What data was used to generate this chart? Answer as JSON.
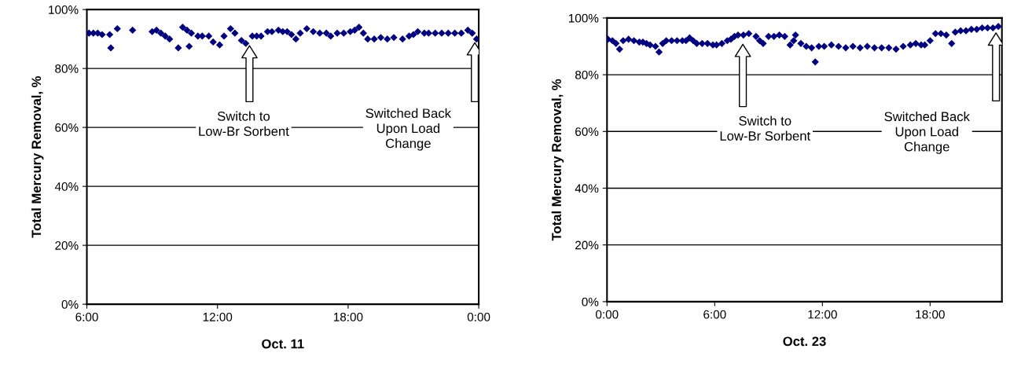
{
  "chart_data": [
    {
      "type": "scatter",
      "xlabel": "Oct. 11",
      "ylabel": "Total Mercury Removal, %",
      "marker": "diamond",
      "grid": "y",
      "xlim": [
        6,
        24
      ],
      "xticks": [
        {
          "value": 6,
          "label": "6:00"
        },
        {
          "value": 12,
          "label": "12:00"
        },
        {
          "value": 18,
          "label": "18:00"
        },
        {
          "value": 24,
          "label": "0:00"
        }
      ],
      "ylim": [
        0,
        100
      ],
      "yticks": [
        {
          "value": 0,
          "label": "0%"
        },
        {
          "value": 20,
          "label": "20%"
        },
        {
          "value": 40,
          "label": "40%"
        },
        {
          "value": 60,
          "label": "60%"
        },
        {
          "value": 80,
          "label": "80%"
        },
        {
          "value": 100,
          "label": "100%"
        }
      ],
      "series": [
        {
          "color": "#000080",
          "x": [
            6.1,
            6.3,
            6.5,
            6.7,
            7.05,
            7.1,
            7.4,
            8.1,
            9.0,
            9.2,
            9.4,
            9.6,
            9.8,
            10.2,
            10.4,
            10.6,
            10.7,
            10.8,
            11.1,
            11.3,
            11.6,
            11.8,
            12.1,
            12.3,
            12.6,
            12.8,
            13.1,
            13.3,
            13.6,
            13.8,
            14.0,
            14.3,
            14.5,
            14.8,
            15.0,
            15.2,
            15.4,
            15.6,
            15.8,
            16.1,
            16.4,
            16.7,
            17.0,
            17.2,
            17.5,
            17.8,
            18.1,
            18.3,
            18.5,
            18.7,
            18.9,
            19.2,
            19.5,
            19.8,
            20.1,
            20.5,
            20.8,
            21.0,
            21.2,
            21.5,
            21.7,
            22.0,
            22.3,
            22.6,
            22.9,
            23.2,
            23.5,
            23.7,
            23.9
          ],
          "values": [
            92,
            92,
            92,
            91.5,
            91.5,
            87,
            93.5,
            93,
            92.5,
            93,
            92,
            91,
            90,
            87,
            94,
            93,
            87.5,
            92,
            91,
            91,
            91,
            89,
            88,
            91,
            93.5,
            92,
            89.5,
            88.5,
            91,
            91,
            91,
            92.5,
            92.5,
            93,
            92.5,
            92.5,
            91.5,
            90,
            92,
            93.5,
            92.5,
            92,
            92,
            91,
            92,
            92,
            92.5,
            93,
            94,
            92,
            90,
            90,
            90.5,
            90,
            90.5,
            90,
            91,
            91.5,
            92.5,
            92,
            92,
            92,
            92,
            92,
            92,
            92,
            93,
            92,
            90
          ]
        }
      ],
      "annotations": [
        "Switch to\nLow-Br Sorbent",
        "Switched Back\nUpon Load\nChange"
      ]
    },
    {
      "type": "scatter",
      "xlabel": "Oct. 23",
      "ylabel": "Total Mercury Removal, %",
      "marker": "diamond",
      "grid": "y",
      "xlim": [
        0,
        22
      ],
      "xticks": [
        {
          "value": 0,
          "label": "0:00"
        },
        {
          "value": 6,
          "label": "6:00"
        },
        {
          "value": 12,
          "label": "12:00"
        },
        {
          "value": 18,
          "label": "18:00"
        }
      ],
      "ylim": [
        0,
        100
      ],
      "yticks": [
        {
          "value": 0,
          "label": "0%"
        },
        {
          "value": 20,
          "label": "20%"
        },
        {
          "value": 40,
          "label": "40%"
        },
        {
          "value": 60,
          "label": "60%"
        },
        {
          "value": 80,
          "label": "80%"
        },
        {
          "value": 100,
          "label": "100%"
        }
      ],
      "series": [
        {
          "color": "#000080",
          "x": [
            0.05,
            0.3,
            0.5,
            0.7,
            0.9,
            1.2,
            1.5,
            1.8,
            2.0,
            2.2,
            2.4,
            2.7,
            2.9,
            3.1,
            3.3,
            3.6,
            3.9,
            4.2,
            4.4,
            4.6,
            4.8,
            5.0,
            5.3,
            5.6,
            5.9,
            6.1,
            6.4,
            6.7,
            6.9,
            7.1,
            7.3,
            7.6,
            7.9,
            8.3,
            8.5,
            8.7,
            9.0,
            9.3,
            9.6,
            9.9,
            10.2,
            10.4,
            10.5,
            10.8,
            11.1,
            11.4,
            11.6,
            11.8,
            12.1,
            12.5,
            12.9,
            13.3,
            13.7,
            14.1,
            14.5,
            14.9,
            15.3,
            15.7,
            16.1,
            16.5,
            16.9,
            17.2,
            17.5,
            17.7,
            18.0,
            18.3,
            18.6,
            18.9,
            19.2,
            19.4,
            19.7,
            20.0,
            20.3,
            20.6,
            20.9,
            21.2,
            21.5,
            21.8
          ],
          "values": [
            92.5,
            92,
            91,
            89,
            92,
            92.5,
            92,
            91.5,
            91.5,
            91,
            90.5,
            90,
            88,
            91,
            92,
            92,
            92,
            92,
            92,
            93,
            92,
            91,
            91,
            91,
            90.5,
            90.5,
            91,
            92,
            92.5,
            93.5,
            94,
            94,
            94.5,
            93.5,
            92,
            91,
            93.5,
            93.5,
            94,
            93.5,
            90.5,
            92,
            94,
            91,
            90,
            89.5,
            84.5,
            90,
            90,
            90.5,
            90,
            89.5,
            90,
            89.5,
            90,
            89.5,
            89.5,
            89.5,
            89,
            90,
            90.5,
            91,
            90.5,
            90.5,
            92,
            94.5,
            94.5,
            94,
            91,
            95,
            95.5,
            95.5,
            96,
            96,
            96.5,
            96.5,
            96.5,
            97
          ]
        }
      ],
      "annotations": [
        "Switch to\nLow-Br Sorbent",
        "Switched Back\nUpon Load\nChange"
      ]
    }
  ]
}
